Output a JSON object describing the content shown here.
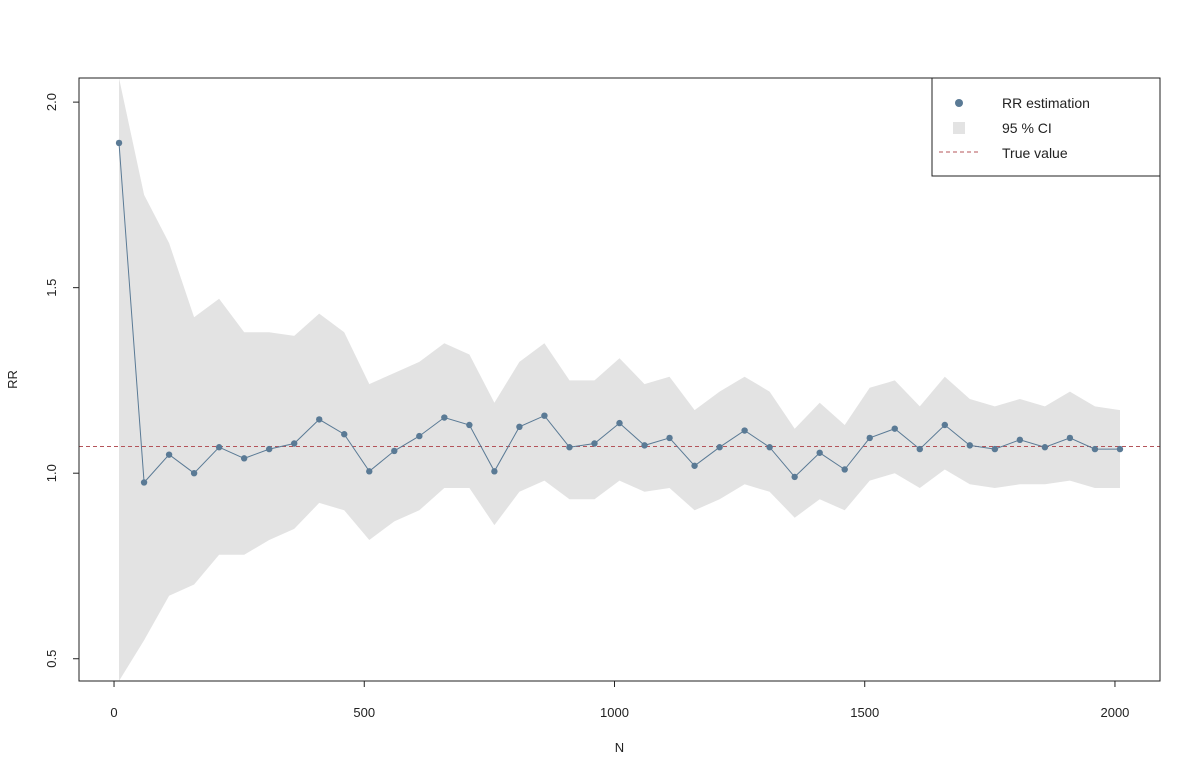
{
  "chart_data": {
    "type": "line",
    "xlabel": "N",
    "ylabel": "RR",
    "xlim": [
      -70,
      2090
    ],
    "ylim": [
      0.44,
      2.065
    ],
    "xticks": [
      0,
      500,
      1000,
      1500,
      2000
    ],
    "xtick_labels": [
      "0",
      "500",
      "1000",
      "1500",
      "2000"
    ],
    "yticks": [
      0.5,
      1.0,
      1.5,
      2.0
    ],
    "ytick_labels": [
      "0.5",
      "1.0",
      "1.5",
      "2.0"
    ],
    "grid": false,
    "legend_position": "top-right",
    "legend": [
      {
        "label": "RR estimation",
        "kind": "point",
        "color": "#5a7a95"
      },
      {
        "label": "95 % CI",
        "kind": "band",
        "color": "#e3e3e3"
      },
      {
        "label": "True value",
        "kind": "dashed-line",
        "color": "#b4545a"
      }
    ],
    "true_value": 1.072,
    "series": [
      {
        "name": "RR estimation",
        "x": [
          10,
          60,
          110,
          160,
          210,
          260,
          310,
          360,
          410,
          460,
          510,
          560,
          610,
          660,
          710,
          760,
          810,
          860,
          910,
          960,
          1010,
          1060,
          1110,
          1160,
          1210,
          1260,
          1310,
          1360,
          1410,
          1460,
          1510,
          1560,
          1610,
          1660,
          1710,
          1760,
          1810,
          1860,
          1910,
          1960,
          2010
        ],
        "y": [
          1.89,
          0.975,
          1.05,
          1.0,
          1.07,
          1.04,
          1.065,
          1.08,
          1.145,
          1.105,
          1.005,
          1.06,
          1.1,
          1.15,
          1.13,
          1.005,
          1.125,
          1.155,
          1.07,
          1.08,
          1.135,
          1.075,
          1.095,
          1.02,
          1.07,
          1.115,
          1.07,
          0.99,
          1.055,
          1.01,
          1.095,
          1.12,
          1.065,
          1.13,
          1.075,
          1.065,
          1.09,
          1.07,
          1.095,
          1.065,
          1.065
        ]
      },
      {
        "name": "95 % CI",
        "x": [
          10,
          60,
          110,
          160,
          210,
          260,
          310,
          360,
          410,
          460,
          510,
          560,
          610,
          660,
          710,
          760,
          810,
          860,
          910,
          960,
          1010,
          1060,
          1110,
          1160,
          1210,
          1260,
          1310,
          1360,
          1410,
          1460,
          1510,
          1560,
          1610,
          1660,
          1710,
          1760,
          1810,
          1860,
          1910,
          1960,
          2010
        ],
        "lower": [
          0.42,
          0.55,
          0.67,
          0.7,
          0.78,
          0.78,
          0.82,
          0.85,
          0.92,
          0.9,
          0.82,
          0.87,
          0.9,
          0.96,
          0.96,
          0.86,
          0.95,
          0.98,
          0.93,
          0.93,
          0.98,
          0.95,
          0.96,
          0.9,
          0.93,
          0.97,
          0.95,
          0.88,
          0.93,
          0.9,
          0.98,
          1.0,
          0.96,
          1.01,
          0.97,
          0.96,
          0.97,
          0.97,
          0.98,
          0.96,
          0.96
        ],
        "upper": [
          2.1,
          1.75,
          1.62,
          1.42,
          1.47,
          1.38,
          1.38,
          1.37,
          1.43,
          1.38,
          1.24,
          1.27,
          1.3,
          1.35,
          1.32,
          1.19,
          1.3,
          1.35,
          1.25,
          1.25,
          1.31,
          1.24,
          1.26,
          1.17,
          1.22,
          1.26,
          1.22,
          1.12,
          1.19,
          1.13,
          1.23,
          1.25,
          1.18,
          1.26,
          1.2,
          1.18,
          1.2,
          1.18,
          1.22,
          1.18,
          1.17
        ]
      }
    ]
  }
}
